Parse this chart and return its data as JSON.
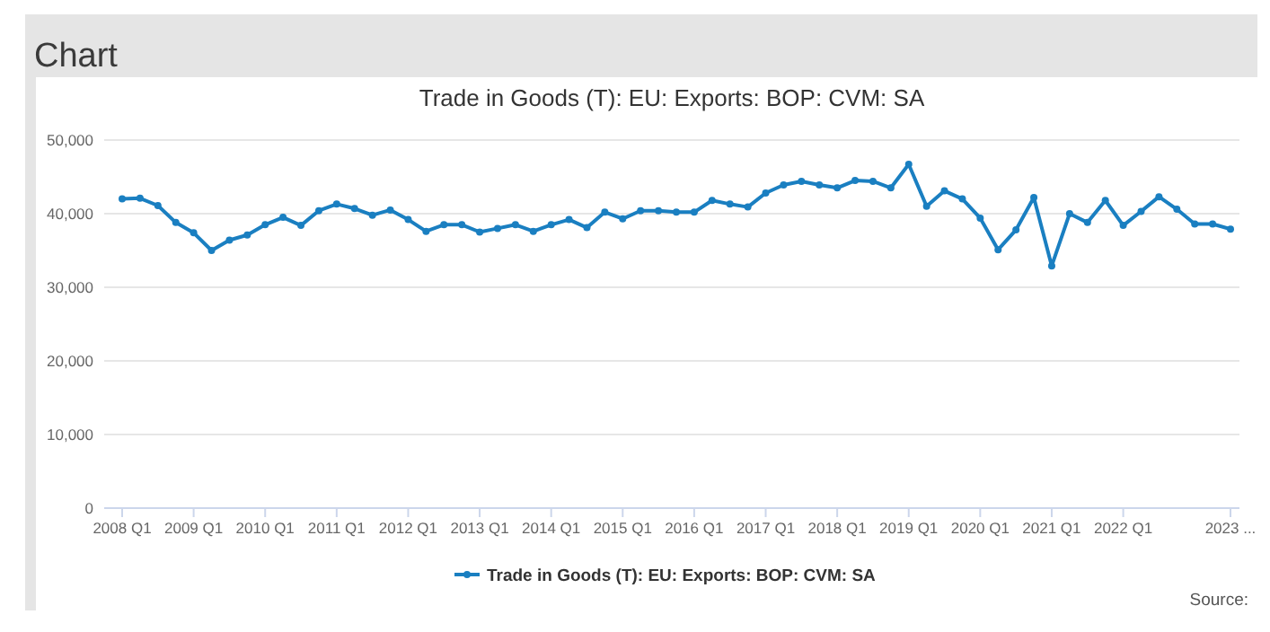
{
  "chart_data": {
    "type": "line",
    "title": "Chart",
    "subtitle": "Trade in Goods (T): EU: Exports: BOP: CVM: SA",
    "categories": [
      "2008 Q1",
      null,
      null,
      null,
      "2009 Q1",
      null,
      null,
      null,
      "2010 Q1",
      null,
      null,
      null,
      "2011 Q1",
      null,
      null,
      null,
      "2012 Q1",
      null,
      null,
      null,
      "2013 Q1",
      null,
      null,
      null,
      "2014 Q1",
      null,
      null,
      null,
      "2015 Q1",
      null,
      null,
      null,
      "2016 Q1",
      null,
      null,
      null,
      "2017 Q1",
      null,
      null,
      null,
      "2018 Q1",
      null,
      null,
      null,
      "2019 Q1",
      null,
      null,
      null,
      "2020 Q1",
      null,
      null,
      null,
      "2021 Q1",
      null,
      null,
      null,
      "2022 Q1",
      null,
      null,
      null,
      null,
      null,
      "2023 ..."
    ],
    "series": [
      {
        "name": "Trade in Goods (T): EU: Exports: BOP: CVM: SA",
        "color": "#1a7fc1",
        "values": [
          42000,
          42100,
          41100,
          38800,
          37400,
          35000,
          36400,
          37100,
          38500,
          39500,
          38400,
          40400,
          41300,
          40700,
          39800,
          40500,
          39200,
          37600,
          38500,
          38500,
          37500,
          38000,
          38500,
          37600,
          38500,
          39200,
          38100,
          40200,
          39300,
          40400,
          40400,
          40200,
          40200,
          41800,
          41300,
          40900,
          42800,
          43900,
          44400,
          43900,
          43500,
          44500,
          44400,
          43500,
          46700,
          41000,
          43100,
          42000,
          39400,
          35100,
          37800,
          42200,
          32900,
          40000,
          38800,
          41800,
          38400,
          40300,
          42300,
          40600,
          38600,
          38600,
          37900
        ]
      }
    ],
    "ylim": [
      0,
      50000
    ],
    "yticks": [
      {
        "value": 0,
        "label": "0"
      },
      {
        "value": 10000,
        "label": "10,000"
      },
      {
        "value": 20000,
        "label": "20,000"
      },
      {
        "value": 30000,
        "label": "30,000"
      },
      {
        "value": 40000,
        "label": "40,000"
      },
      {
        "value": 50000,
        "label": "50,000"
      }
    ],
    "grid": "y",
    "legend": "bottom",
    "marker": "circle",
    "line_style": "solid",
    "annotations": [
      "Source:"
    ]
  }
}
